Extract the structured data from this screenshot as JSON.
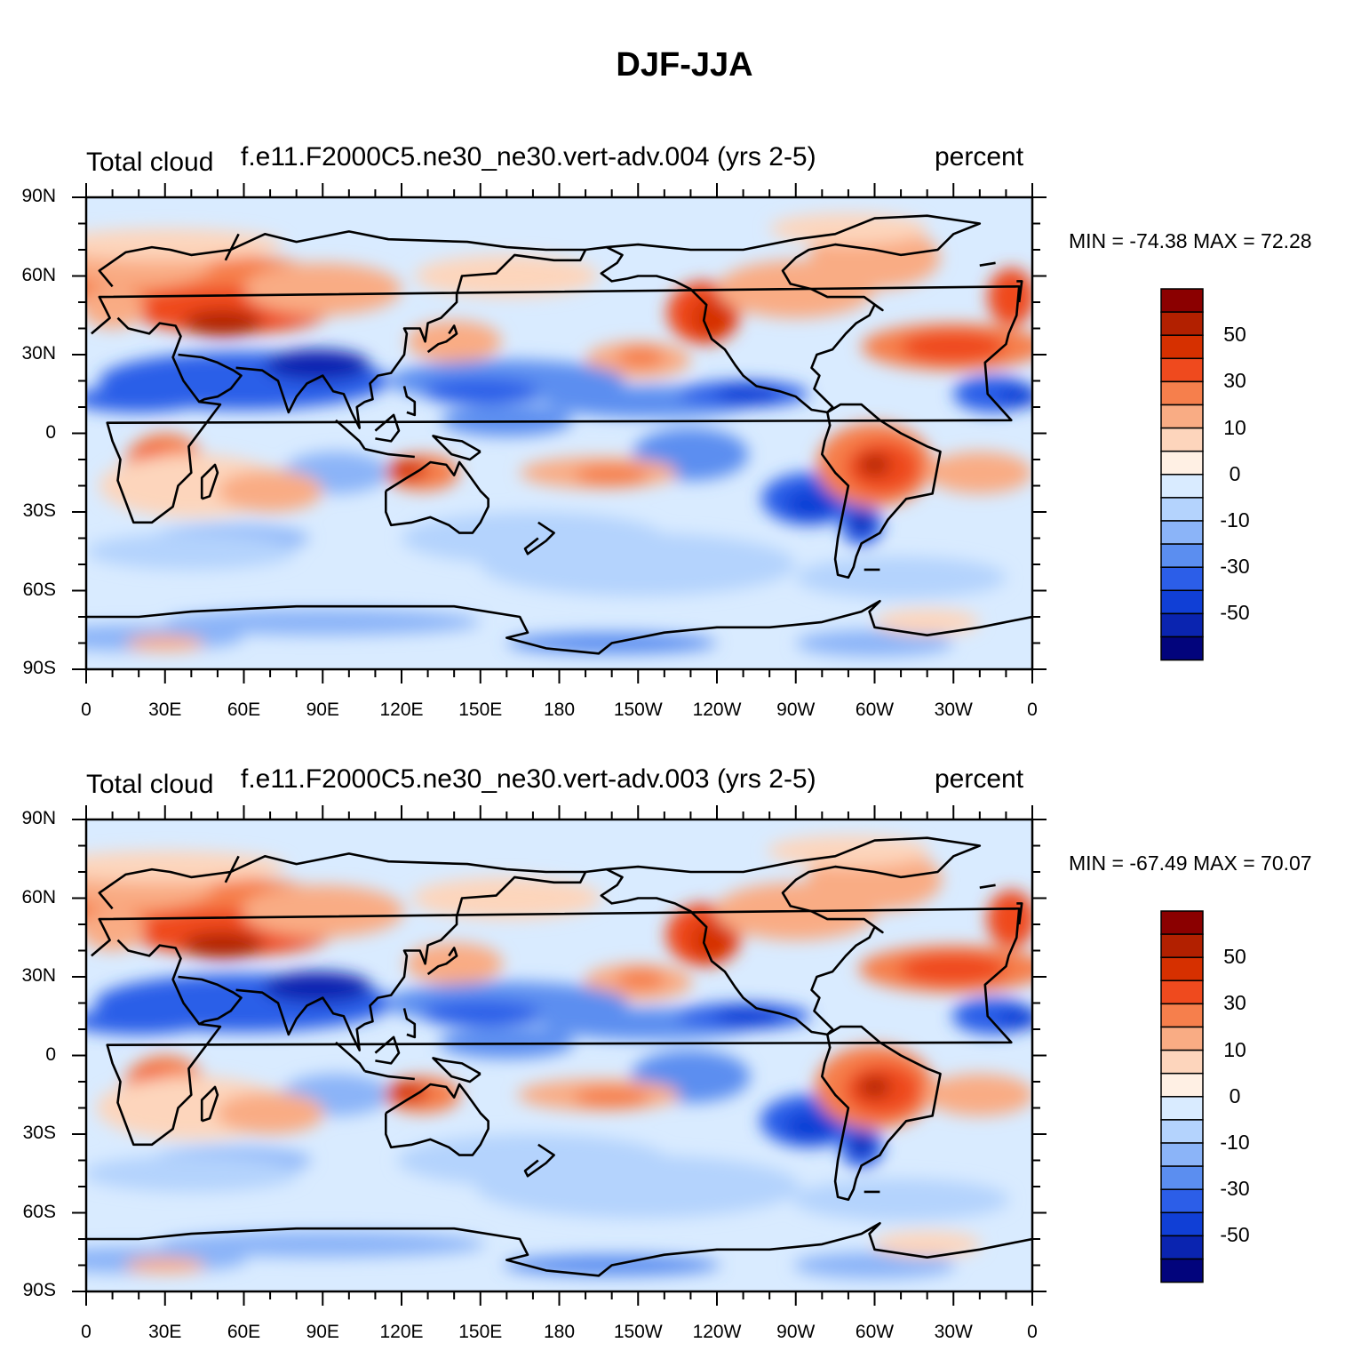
{
  "title": "DJF-JJA",
  "panels": [
    {
      "variable": "Total cloud",
      "case": "f.e11.F2000C5.ne30_ne30.vert-adv.004 (yrs 2-5)",
      "units": "percent",
      "minmax": "MIN = -74.38 MAX =  72.28"
    },
    {
      "variable": "Total cloud",
      "case": "f.e11.F2000C5.ne30_ne30.vert-adv.003 (yrs 2-5)",
      "units": "percent",
      "minmax": "MIN = -67.49 MAX =  70.07"
    }
  ],
  "lat_labels": [
    "90N",
    "60N",
    "30N",
    "0",
    "30S",
    "60S",
    "90S"
  ],
  "lon_labels": [
    "0",
    "30E",
    "60E",
    "90E",
    "120E",
    "150E",
    "180",
    "150W",
    "120W",
    "90W",
    "60W",
    "30W",
    "0"
  ],
  "colorbar": {
    "labels": [
      "50",
      "30",
      "10",
      "0",
      "-10",
      "-30",
      "-50"
    ],
    "colors": [
      "#8b0000",
      "#b22000",
      "#d63000",
      "#ef4a1e",
      "#f67f4c",
      "#f9ac84",
      "#fdd5bc",
      "#fff0e4",
      "#d9ebff",
      "#b4d3fd",
      "#8bb4f8",
      "#5b8ef0",
      "#2c5ee8",
      "#103fd6",
      "#0a24b0",
      "#02047c"
    ]
  }
}
